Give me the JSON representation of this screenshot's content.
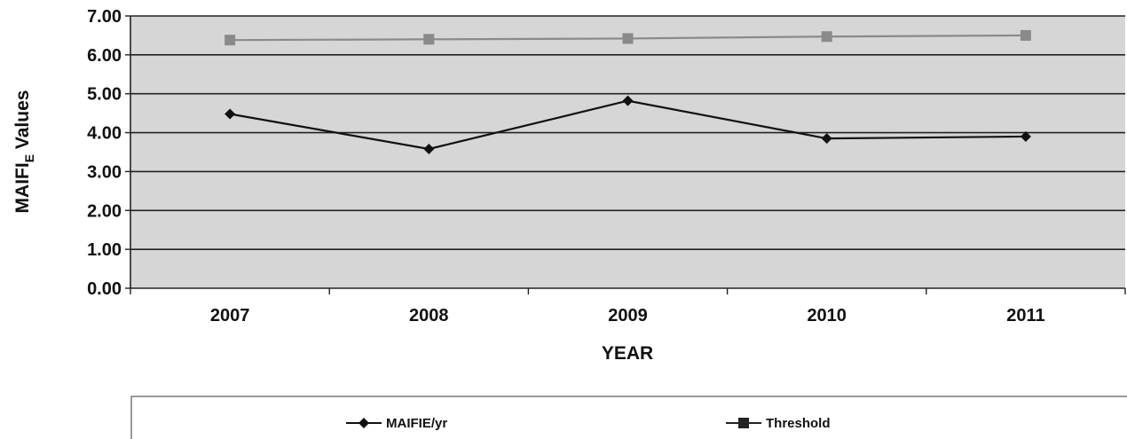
{
  "chart_data": {
    "type": "line",
    "categories": [
      "2007",
      "2008",
      "2009",
      "2010",
      "2011"
    ],
    "series": [
      {
        "name": "MAIFIE/yr",
        "values": [
          4.48,
          3.58,
          4.82,
          3.85,
          3.9
        ],
        "color": "#111111",
        "marker": "diamond"
      },
      {
        "name": "Threshold",
        "values": [
          6.38,
          6.4,
          6.42,
          6.47,
          6.5
        ],
        "color": "#8a8a8a",
        "marker": "square"
      }
    ],
    "ylim": [
      0,
      7
    ],
    "y_ticks": [
      "0.00",
      "1.00",
      "2.00",
      "3.00",
      "4.00",
      "5.00",
      "6.00",
      "7.00"
    ],
    "xlabel": "YEAR",
    "ylabel_main": "MAIFI",
    "ylabel_sub": "E",
    "ylabel_tail": " Values",
    "grid": true,
    "legend_position": "bottom",
    "plot_background": "#d6d6d6",
    "gridline_color": "#222222"
  }
}
